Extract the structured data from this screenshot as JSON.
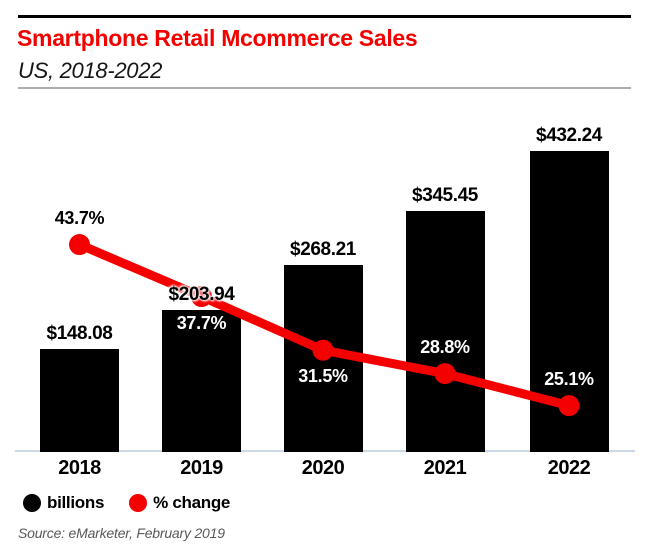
{
  "header": {
    "title": "Smartphone Retail Mcommerce Sales",
    "subtitle": "US, 2018-2022"
  },
  "chart_data": {
    "type": "bar",
    "subtype": "bar-line-combo",
    "categories": [
      "2018",
      "2019",
      "2020",
      "2021",
      "2022"
    ],
    "series": [
      {
        "name": "billions",
        "type": "bar",
        "unit": "US$ billions",
        "values": [
          148.08,
          203.94,
          268.21,
          345.45,
          432.24
        ],
        "labels": [
          "$148.08",
          "$203.94",
          "$268.21",
          "$345.45",
          "$432.24"
        ],
        "color": "#000000"
      },
      {
        "name": "% change",
        "type": "line",
        "unit": "percent",
        "values": [
          43.7,
          37.7,
          31.5,
          28.8,
          25.1
        ],
        "labels": [
          "43.7%",
          "37.7%",
          "31.5%",
          "28.8%",
          "25.1%"
        ],
        "color": "#f40000",
        "label_side": [
          "above",
          "below",
          "below",
          "above",
          "above"
        ],
        "label_color": [
          "#000000",
          "#ffffff",
          "#ffffff",
          "#ffffff",
          "#ffffff"
        ]
      }
    ],
    "title": "Smartphone Retail Mcommerce Sales",
    "subtitle": "US, 2018-2022",
    "xlabel": "",
    "ylabel": "",
    "ylim_bars": [
      0,
      440
    ],
    "ylim_line_pct": [
      20,
      50
    ],
    "grid": false,
    "y_axis_visible": false,
    "legend_position": "bottom-left"
  },
  "legend": {
    "items": [
      {
        "label": "billions",
        "color": "#000000"
      },
      {
        "label": "% change",
        "color": "#f40000"
      }
    ]
  },
  "source": "Source: eMarketer, February 2019",
  "colors": {
    "accent_red": "#f40000",
    "bar_black": "#000000",
    "axis_line": "#ccd8e5",
    "top_rule": "#000000",
    "sub_rule": "#adadad",
    "source_text": "#58595b"
  }
}
